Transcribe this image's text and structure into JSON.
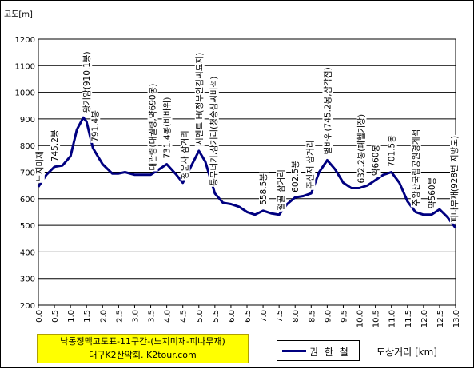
{
  "chart_data": {
    "type": "line",
    "title": "낙동정맥고도표-11구간-(느지미재-피나무재)",
    "subtitle": "대구K2산악회. K2tour.com",
    "ylabel": "고도[m]",
    "xlabel": "도상거리 [km]",
    "ylim": [
      200,
      1200
    ],
    "xlim": [
      0,
      13
    ],
    "yticks": [
      "200",
      "300",
      "400",
      "500",
      "600",
      "700",
      "800",
      "900",
      "1000",
      "1100",
      "1200"
    ],
    "xticks": [
      "0.0",
      "0.5",
      "1.0",
      "1.5",
      "2.0",
      "2.5",
      "3.0",
      "3.5",
      "4.0",
      "4.5",
      "5.0",
      "5.5",
      "6.0",
      "6.5",
      "7.0",
      "7.5",
      "8.0",
      "8.5",
      "9.0",
      "9.5",
      "10.0",
      "10.5",
      "11.0",
      "11.5",
      "12.0",
      "12.5",
      "13.0"
    ],
    "grid": true,
    "legend": "bottom",
    "series": [
      {
        "name": "권 한 철",
        "color": "#000080",
        "x": [
          0.0,
          0.25,
          0.5,
          0.75,
          1.0,
          1.2,
          1.4,
          1.5,
          1.7,
          2.0,
          2.3,
          2.5,
          2.7,
          3.0,
          3.25,
          3.5,
          3.75,
          4.0,
          4.3,
          4.5,
          4.75,
          5.0,
          5.2,
          5.5,
          5.75,
          6.0,
          6.25,
          6.5,
          6.75,
          7.0,
          7.25,
          7.5,
          7.75,
          8.0,
          8.25,
          8.5,
          8.75,
          9.0,
          9.25,
          9.5,
          9.75,
          10.0,
          10.25,
          10.5,
          10.75,
          11.0,
          11.25,
          11.5,
          11.75,
          12.0,
          12.25,
          12.5,
          12.75,
          13.0
        ],
        "values": [
          645,
          690,
          720,
          725,
          760,
          860,
          905,
          890,
          790,
          730,
          695,
          695,
          700,
          690,
          690,
          690,
          710,
          730,
          690,
          660,
          720,
          780,
          740,
          620,
          585,
          580,
          570,
          550,
          540,
          555,
          545,
          540,
          580,
          605,
          610,
          620,
          700,
          745,
          710,
          660,
          640,
          640,
          650,
          670,
          690,
          700,
          660,
          590,
          550,
          540,
          540,
          560,
          530,
          490
        ]
      }
    ],
    "annotations": [
      {
        "text": "느지미재",
        "x": 0.02,
        "y": 645
      },
      {
        "text": "745.2봉",
        "x": 0.5,
        "y": 722
      },
      {
        "text": "왕거암(910.1봉)",
        "x": 1.5,
        "y": 905
      },
      {
        "text": "791.4봉",
        "x": 1.75,
        "y": 795
      },
      {
        "text": "대관령(대궐령,약690봉)",
        "x": 3.55,
        "y": 688
      },
      {
        "text": "731.4봉(비바위)",
        "x": 4.0,
        "y": 733
      },
      {
        "text": "청운사 삼거리",
        "x": 4.55,
        "y": 655
      },
      {
        "text": "시멘트 H(정부인김씨묘지)",
        "x": 5.0,
        "y": 783
      },
      {
        "text": "통무너기,삼거리(청송심씨비석)",
        "x": 5.45,
        "y": 630
      },
      {
        "text": "558.5봉",
        "x": 7.0,
        "y": 558
      },
      {
        "text": "절골 삼거리",
        "x": 7.55,
        "y": 537
      },
      {
        "text": "602.5봉",
        "x": 8.0,
        "y": 606
      },
      {
        "text": "주산재 삼거리",
        "x": 8.45,
        "y": 618
      },
      {
        "text": "별바위(745.2봉,삼각점)",
        "x": 9.0,
        "y": 748
      },
      {
        "text": "632.2봉(폐헬기장)",
        "x": 10.05,
        "y": 640
      },
      {
        "text": "약660봉",
        "x": 10.5,
        "y": 668
      },
      {
        "text": "701.5봉",
        "x": 11.0,
        "y": 702
      },
      {
        "text": "주왕산국립공원경계석",
        "x": 11.75,
        "y": 553
      },
      {
        "text": "약560봉",
        "x": 12.25,
        "y": 545
      },
      {
        "text": "피나무재(928번 지방도)",
        "x": 12.95,
        "y": 492
      }
    ]
  }
}
